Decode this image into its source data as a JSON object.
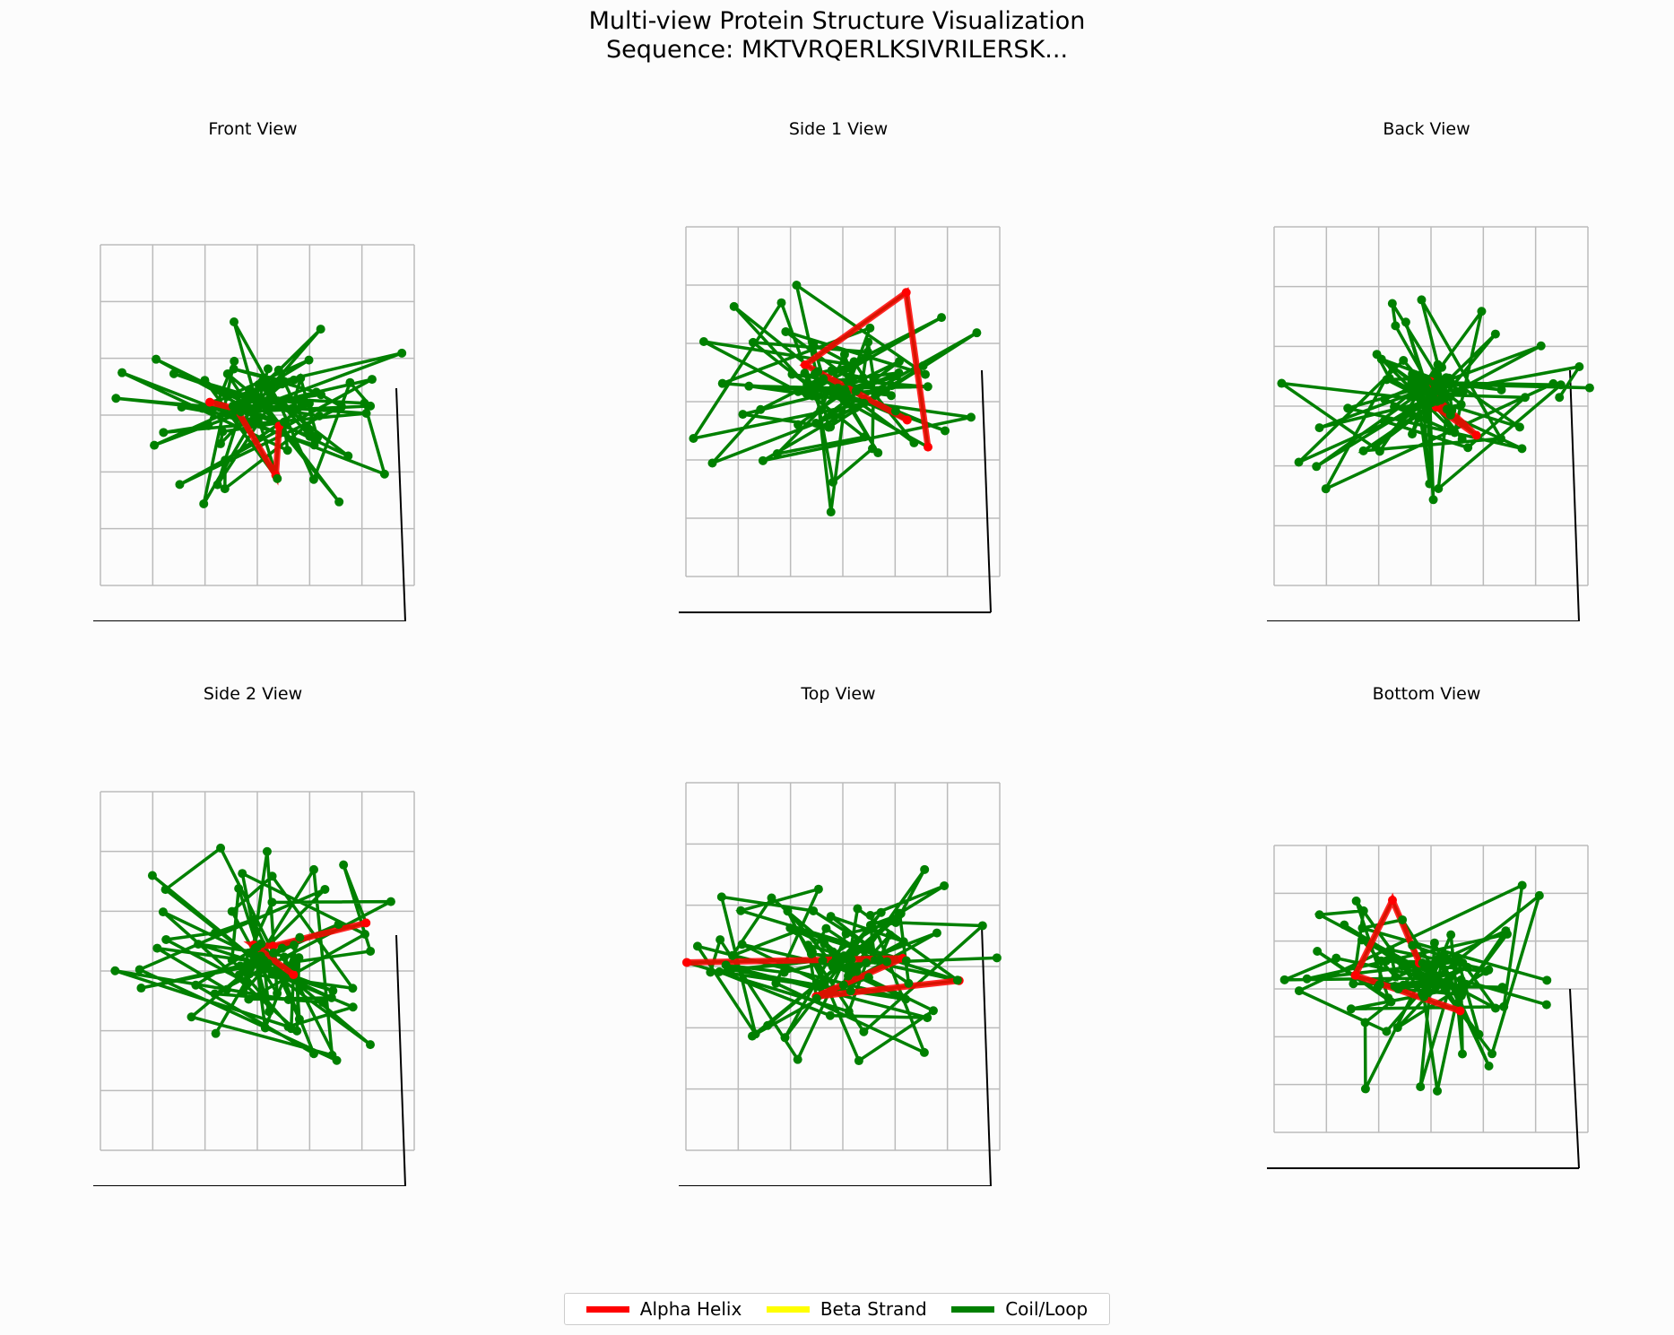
{
  "title_line1": "Multi-view Protein Structure Visualization",
  "title_line2": "Sequence: MKTVRQERLKSIVRILERSK...",
  "chart_data": [
    {
      "type": "scatter",
      "subtype": "3d-line",
      "title": "Front View"
    },
    {
      "type": "scatter",
      "subtype": "3d-line",
      "title": "Side 1 View"
    },
    {
      "type": "scatter",
      "subtype": "3d-line",
      "title": "Back View"
    },
    {
      "type": "scatter",
      "subtype": "3d-line",
      "title": "Side 2 View"
    },
    {
      "type": "scatter",
      "subtype": "3d-line",
      "title": "Top View"
    },
    {
      "type": "scatter",
      "subtype": "3d-line",
      "title": "Bottom View"
    }
  ],
  "legend": {
    "placement": "bottom-center",
    "items": [
      {
        "label": "Alpha Helix",
        "color": "#ff0000"
      },
      {
        "label": "Beta Strand",
        "color": "#ffff00"
      },
      {
        "label": "Coil/Loop",
        "color": "#008000"
      }
    ]
  },
  "colors": {
    "helix": "#ff0000",
    "strand": "#ffff00",
    "coil": "#008000",
    "grid": "#bbbbbb"
  }
}
